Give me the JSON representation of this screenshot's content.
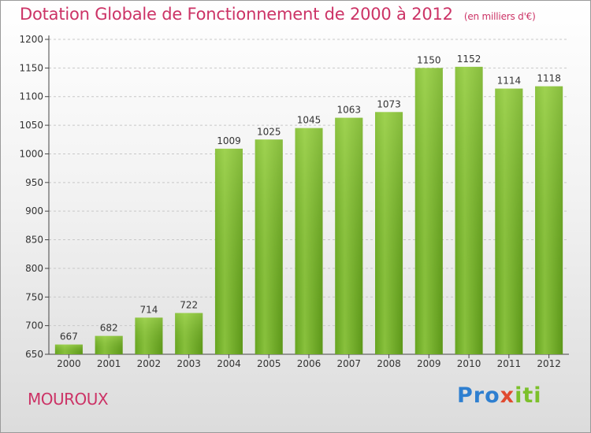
{
  "chart_data": {
    "type": "bar",
    "title": "Dotation Globale de Fonctionnement de 2000 à 2012",
    "subtitle": "(en milliers d'€)",
    "categories": [
      "2000",
      "2001",
      "2002",
      "2003",
      "2004",
      "2005",
      "2006",
      "2007",
      "2008",
      "2009",
      "2010",
      "2011",
      "2012"
    ],
    "values": [
      667,
      682,
      714,
      722,
      1009,
      1025,
      1045,
      1063,
      1073,
      1150,
      1152,
      1114,
      1118
    ],
    "ylim": [
      650,
      1200
    ],
    "yticks": [
      650,
      700,
      750,
      800,
      850,
      900,
      950,
      1000,
      1050,
      1100,
      1150,
      1200
    ],
    "xlabel": "",
    "ylabel": "",
    "grid": "horizontal-dashed",
    "bar_color": "#7dba2f",
    "bar_color_light": "#a6d655",
    "bar_color_dark": "#5f9a1b"
  },
  "commune": "MOUROUX",
  "logo": {
    "p1": "Pro",
    "p2": "x",
    "p3": "iti"
  },
  "colors": {
    "title": "#cc3366",
    "axis": "#444444"
  }
}
